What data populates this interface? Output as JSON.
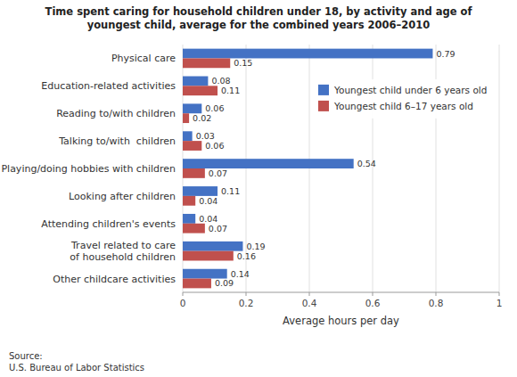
{
  "chart_data": {
    "type": "bar",
    "orientation": "horizontal",
    "title": "Time spent caring for household children under 18, by activity and age of\nyoungest child, average for the combined years 2006–2010",
    "categories": [
      "Physical care",
      "Education-related activities",
      "Reading to/with children",
      "Talking to/with  children",
      "Playing/doing hobbies with children",
      "Looking after children",
      "Attending children's events",
      "Travel related to care\nof household children",
      "Other childcare activities"
    ],
    "series": [
      {
        "name": "Youngest child under 6 years old",
        "color": "#4472C4",
        "values": [
          0.79,
          0.08,
          0.06,
          0.03,
          0.54,
          0.11,
          0.04,
          0.19,
          0.14
        ]
      },
      {
        "name": "Youngest child 6–17 years old",
        "color": "#C0504D",
        "values": [
          0.15,
          0.11,
          0.02,
          0.06,
          0.07,
          0.04,
          0.07,
          0.16,
          0.09
        ]
      }
    ],
    "xlabel": "Average hours per day",
    "xlim": [
      0,
      1
    ],
    "xticks": [
      0,
      0.2,
      0.4,
      0.6,
      0.8,
      1
    ],
    "grid": true,
    "legend": "upper right",
    "data_labels": true,
    "source": "Source:\nU.S. Bureau of Labor Statistics"
  }
}
